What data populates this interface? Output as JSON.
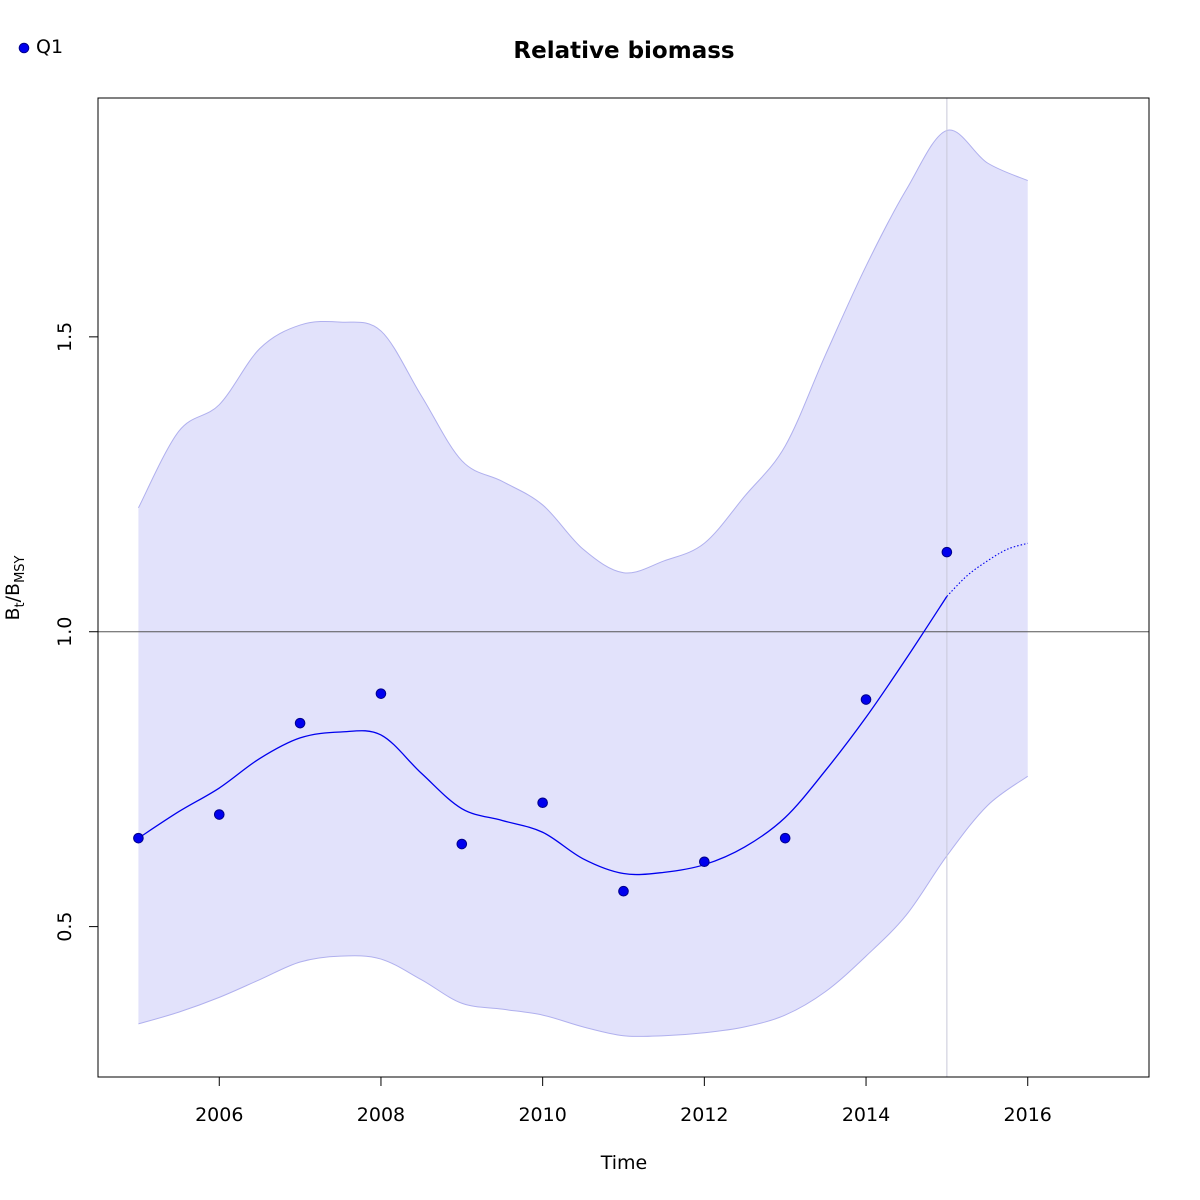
{
  "chart_data": {
    "type": "line",
    "title": "Relative biomass",
    "xlabel": "Time",
    "ylabel": {
      "main": "B",
      "sub1": "t",
      "slash": "/B",
      "sub2": "MSY"
    },
    "xlim": [
      2004.5,
      2017.5
    ],
    "ylim": [
      0.245,
      1.905
    ],
    "xticks": [
      2006,
      2008,
      2010,
      2012,
      2014,
      2016
    ],
    "yticks": [
      0.5,
      1.0,
      1.5
    ],
    "ytick_labels": [
      "0.5",
      "1.0",
      "1.5"
    ],
    "reference_line_y": 1.0,
    "last_observation_x": 2015,
    "legend": {
      "position": "top-left",
      "entries": [
        "Q1"
      ]
    },
    "colors": {
      "series": "#0000ee",
      "band_fill": "#e2e2fb",
      "band_edge": "#b0b0ee",
      "reference": "#555555",
      "vline": "#c8c8d8"
    },
    "series": [
      {
        "name": "Q1",
        "kind": "observed_index",
        "x": [
          2005,
          2006,
          2007,
          2008,
          2009,
          2010,
          2011,
          2012,
          2013,
          2014,
          2015
        ],
        "y": [
          0.65,
          0.69,
          0.845,
          0.895,
          0.64,
          0.71,
          0.56,
          0.61,
          0.65,
          0.885,
          1.135
        ]
      },
      {
        "kind": "estimate",
        "x": [
          2005,
          2005.5,
          2006,
          2006.5,
          2007,
          2007.5,
          2008,
          2008.5,
          2009,
          2009.5,
          2010,
          2010.5,
          2011,
          2011.5,
          2012,
          2012.5,
          2013,
          2013.5,
          2014,
          2014.5,
          2015
        ],
        "y": [
          0.65,
          0.695,
          0.735,
          0.785,
          0.82,
          0.83,
          0.825,
          0.76,
          0.7,
          0.68,
          0.66,
          0.615,
          0.59,
          0.592,
          0.605,
          0.635,
          0.685,
          0.765,
          0.855,
          0.955,
          1.06
        ]
      },
      {
        "kind": "prediction",
        "x": [
          2015,
          2015.25,
          2015.5,
          2015.75,
          2016
        ],
        "y": [
          1.06,
          1.095,
          1.12,
          1.14,
          1.15
        ]
      },
      {
        "kind": "ci_upper",
        "x": [
          2005,
          2005.5,
          2006,
          2006.5,
          2007,
          2007.5,
          2008,
          2008.5,
          2009,
          2009.5,
          2010,
          2010.5,
          2011,
          2011.5,
          2012,
          2012.5,
          2013,
          2013.5,
          2014,
          2014.5,
          2015,
          2015.5,
          2016
        ],
        "y": [
          1.21,
          1.34,
          1.385,
          1.48,
          1.52,
          1.525,
          1.51,
          1.4,
          1.29,
          1.255,
          1.215,
          1.14,
          1.1,
          1.12,
          1.15,
          1.23,
          1.315,
          1.47,
          1.62,
          1.75,
          1.85,
          1.795,
          1.765
        ]
      },
      {
        "kind": "ci_lower",
        "x": [
          2005,
          2005.5,
          2006,
          2006.5,
          2007,
          2007.5,
          2008,
          2008.5,
          2009,
          2009.5,
          2010,
          2010.5,
          2011,
          2011.5,
          2012,
          2012.5,
          2013,
          2013.5,
          2014,
          2014.5,
          2015,
          2015.5,
          2016
        ],
        "y": [
          0.335,
          0.355,
          0.38,
          0.41,
          0.44,
          0.45,
          0.445,
          0.41,
          0.37,
          0.36,
          0.35,
          0.33,
          0.315,
          0.315,
          0.32,
          0.33,
          0.35,
          0.39,
          0.45,
          0.52,
          0.62,
          0.705,
          0.755
        ]
      }
    ]
  }
}
